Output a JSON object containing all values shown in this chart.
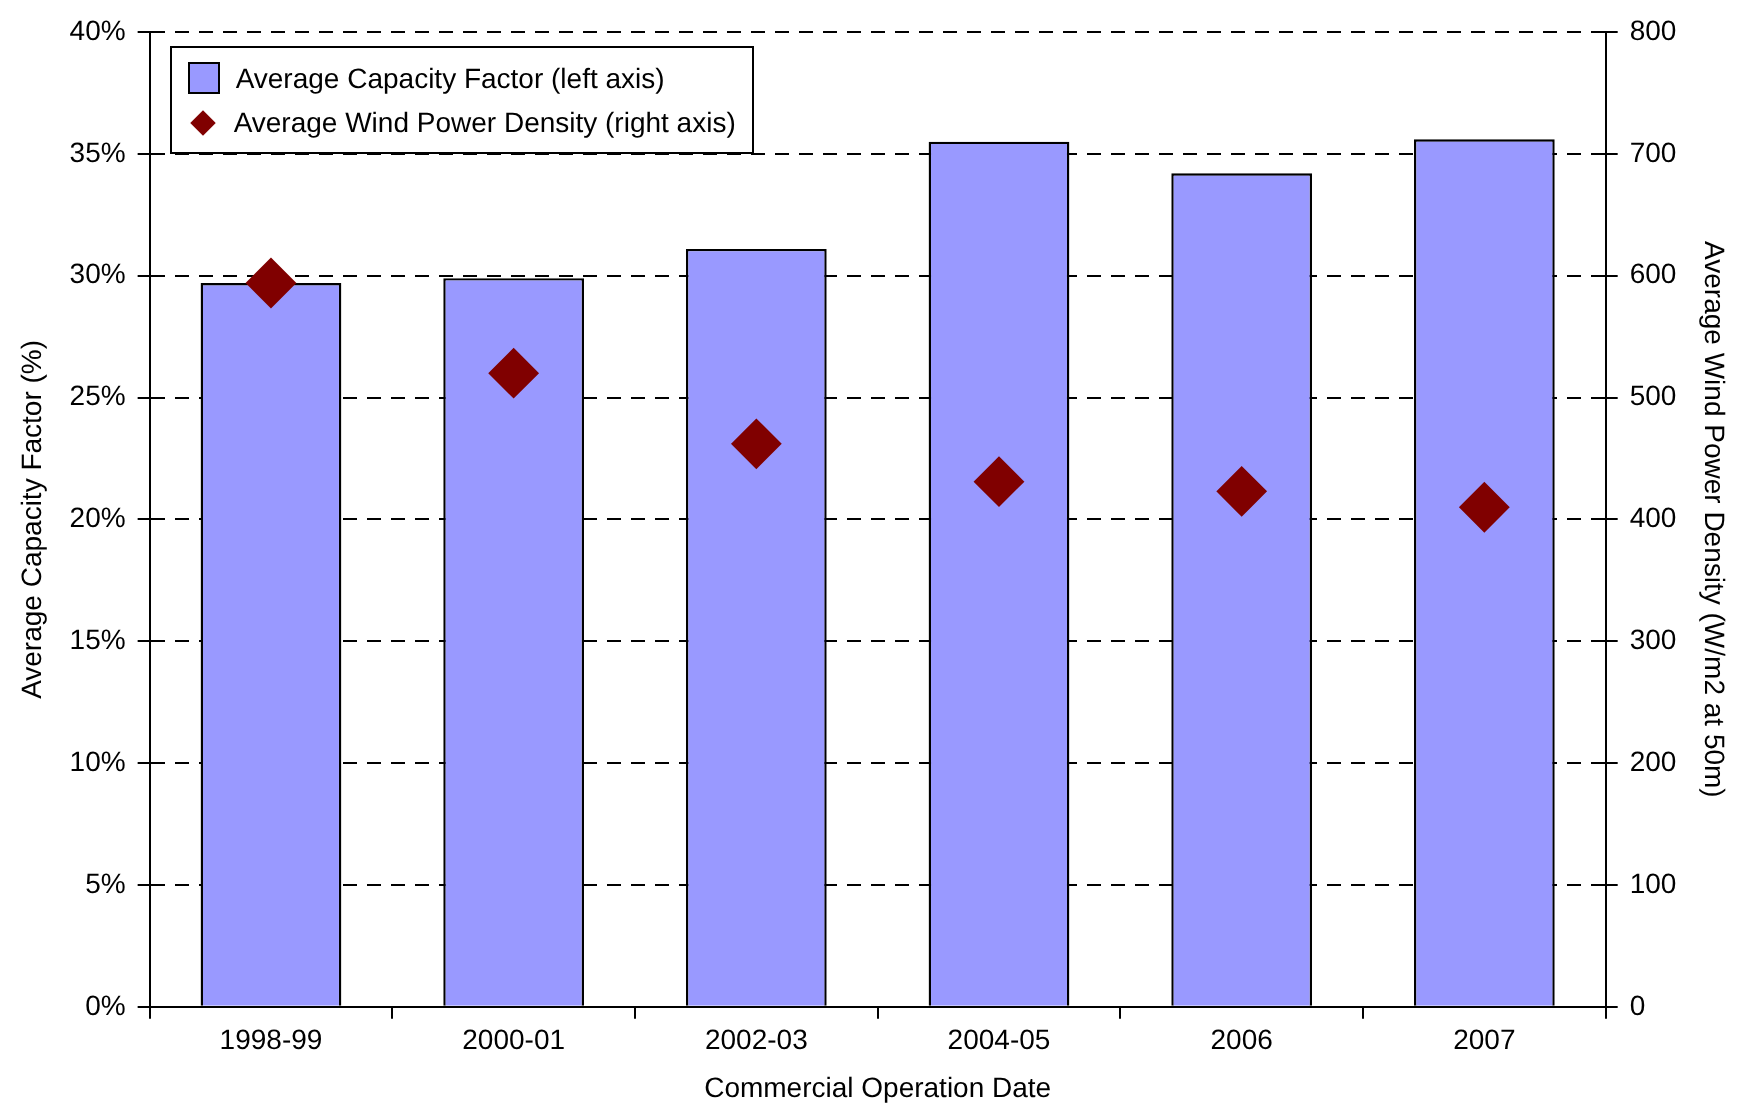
{
  "chart_data": {
    "type": "bar",
    "xlabel": "Commercial Operation Date",
    "ylabel": "Average Capacity Factor (%)",
    "y2label": "Average Wind Power Density (W/m2 at 50m)",
    "categories": [
      "1998-99",
      "2000-01",
      "2002-03",
      "2004-05",
      "2006",
      "2007"
    ],
    "series": [
      {
        "name": "Average Capacity Factor (left axis)",
        "color": "#9999ff",
        "values": [
          29.7,
          29.9,
          31.1,
          35.5,
          34.2,
          35.6
        ]
      },
      {
        "name": "Average Wind Power Density (right axis)",
        "type": "scatter",
        "axis": "y2",
        "color": "#800000",
        "values": [
          594,
          520,
          462,
          431,
          423,
          410
        ]
      }
    ],
    "ylim": [
      0,
      40
    ],
    "yticks": [
      {
        "value": 0,
        "label": "0%"
      },
      {
        "value": 5,
        "label": "5%"
      },
      {
        "value": 10,
        "label": "10%"
      },
      {
        "value": 15,
        "label": "15%"
      },
      {
        "value": 20,
        "label": "20%"
      },
      {
        "value": 25,
        "label": "25%"
      },
      {
        "value": 30,
        "label": "30%"
      },
      {
        "value": 35,
        "label": "35%"
      },
      {
        "value": 40,
        "label": "40%"
      }
    ],
    "y2lim": [
      0,
      800
    ],
    "y2ticks": [
      0,
      100,
      200,
      300,
      400,
      500,
      600,
      700,
      800
    ],
    "grid": "y",
    "legend": "top left",
    "marker": "diamond"
  }
}
